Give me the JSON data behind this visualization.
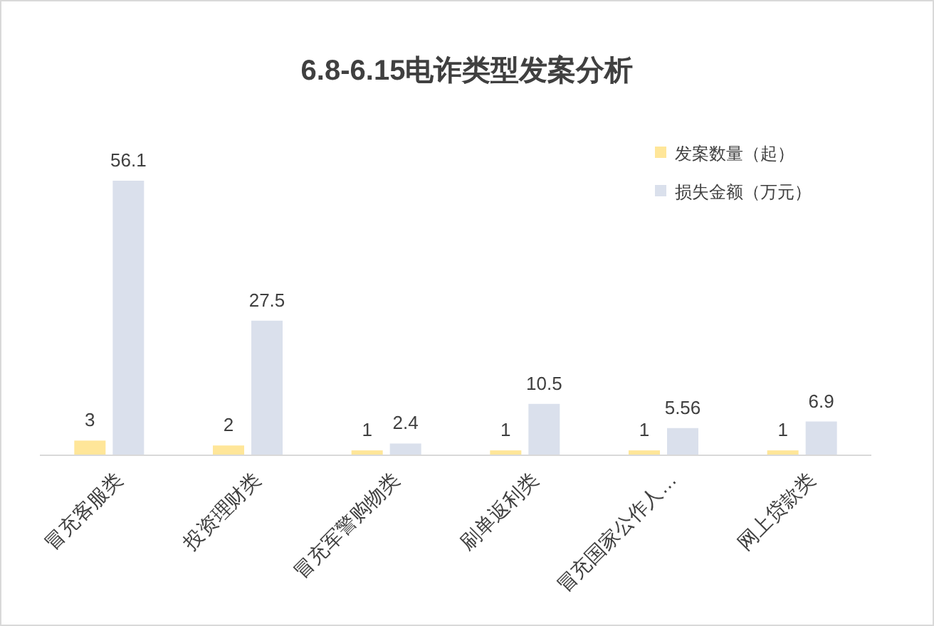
{
  "chart_data": {
    "type": "bar",
    "title": "6.8-6.15电诈类型发案分析",
    "categories": [
      "冒充客服类",
      "投资理财类",
      "冒充军警购物类",
      "刷单返利类",
      "冒充国家公作人…",
      "网上贷款类"
    ],
    "series": [
      {
        "name": "发案数量（起）",
        "color": "#ffe699",
        "values": [
          3,
          2,
          1,
          1,
          1,
          1
        ]
      },
      {
        "name": "损失金额（万元）",
        "color": "#dae0ec",
        "values": [
          56.1,
          27.5,
          2.4,
          10.5,
          5.56,
          6.9
        ]
      }
    ],
    "data_labels": true,
    "legend": "top right"
  }
}
